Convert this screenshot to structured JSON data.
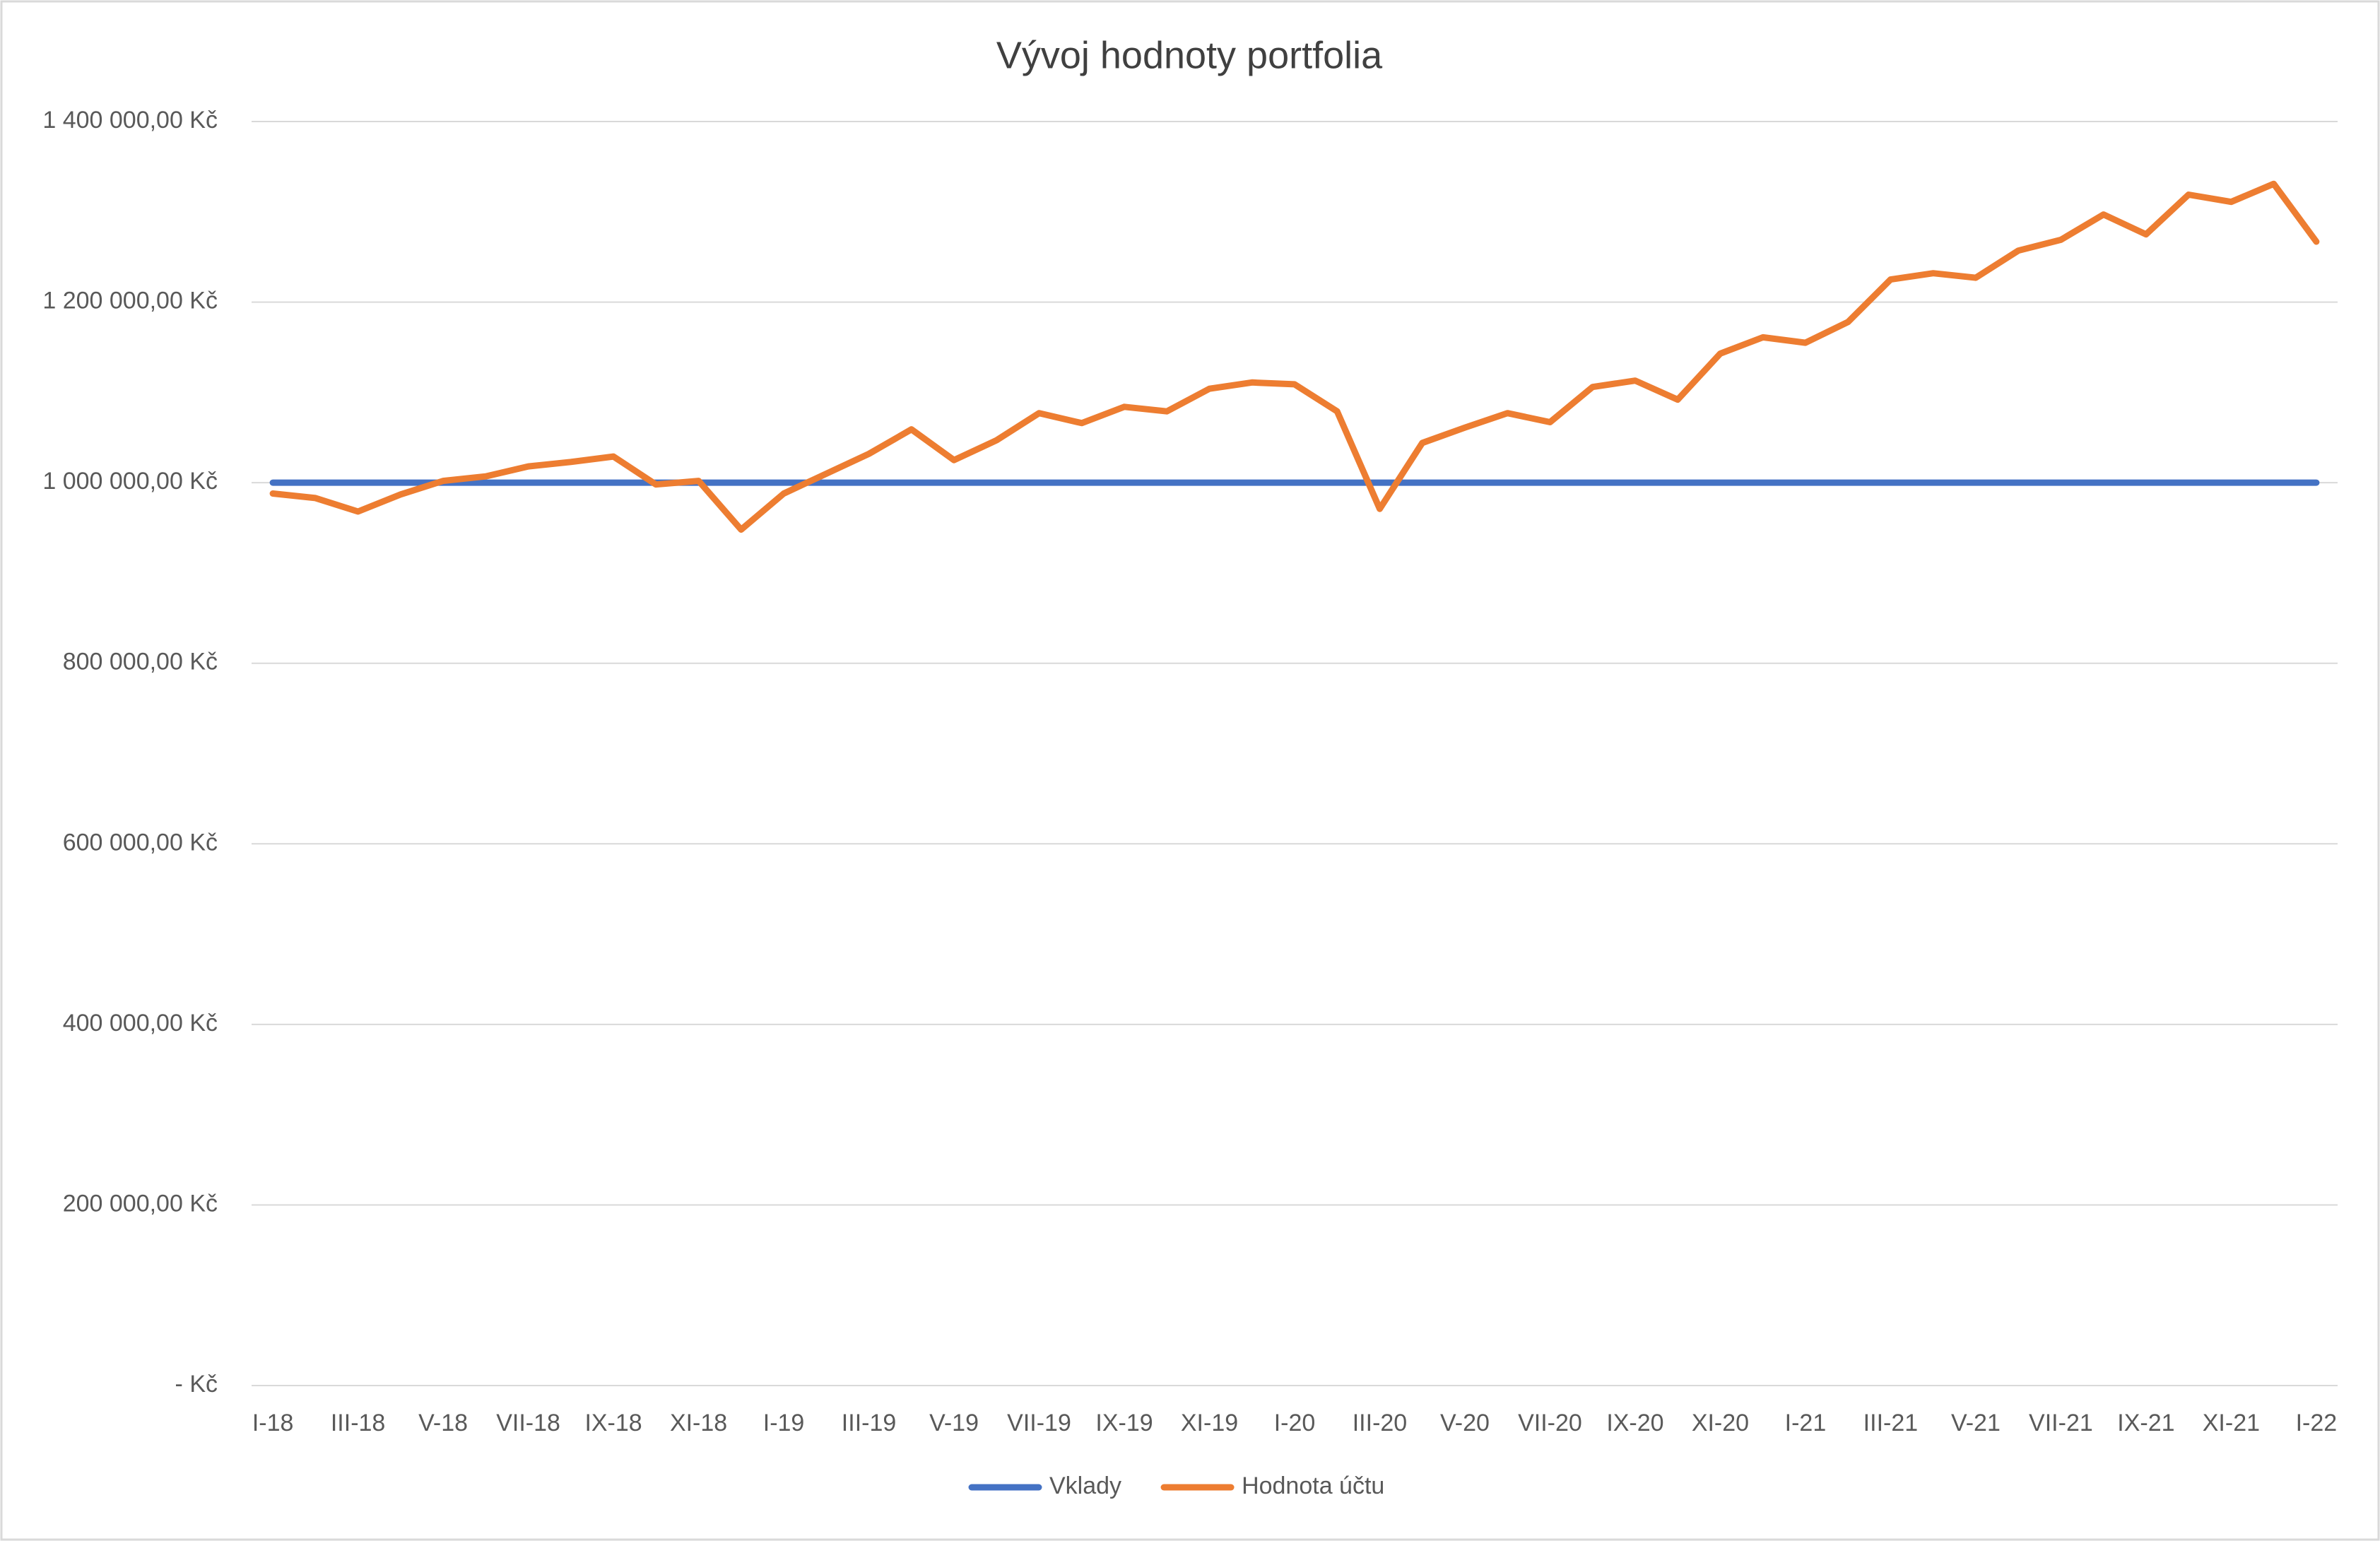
{
  "chart_data": {
    "type": "line",
    "title": "Vývoj hodnoty portfolia",
    "categories": [
      "I-18",
      null,
      "III-18",
      null,
      "V-18",
      null,
      "VII-18",
      null,
      "IX-18",
      null,
      "XI-18",
      null,
      "I-19",
      null,
      "III-19",
      null,
      "V-19",
      null,
      "VII-19",
      null,
      "IX-19",
      null,
      "XI-19",
      null,
      "I-20",
      null,
      "III-20",
      null,
      "V-20",
      null,
      "VII-20",
      null,
      "IX-20",
      null,
      "XI-20",
      null,
      "I-21",
      null,
      "III-21",
      null,
      "V-21",
      null,
      "VII-21",
      null,
      "IX-21",
      null,
      "XI-21",
      null,
      "I-22"
    ],
    "series": [
      {
        "name": "Vklady",
        "color": "#4472c4",
        "values": [
          1000000,
          1000000,
          1000000,
          1000000,
          1000000,
          1000000,
          1000000,
          1000000,
          1000000,
          1000000,
          1000000,
          1000000,
          1000000,
          1000000,
          1000000,
          1000000,
          1000000,
          1000000,
          1000000,
          1000000,
          1000000,
          1000000,
          1000000,
          1000000,
          1000000,
          1000000,
          1000000,
          1000000,
          1000000,
          1000000,
          1000000,
          1000000,
          1000000,
          1000000,
          1000000,
          1000000,
          1000000,
          1000000,
          1000000,
          1000000,
          1000000,
          1000000,
          1000000,
          1000000,
          1000000,
          1000000,
          1000000,
          1000000,
          1000000
        ]
      },
      {
        "name": "Hodnota účtu",
        "color": "#ed7d31",
        "values": [
          988000,
          983000,
          968000,
          987000,
          1002000,
          1007000,
          1018000,
          1023000,
          1029000,
          998000,
          1002000,
          948000,
          988000,
          1010000,
          1032000,
          1059000,
          1025000,
          1047000,
          1077000,
          1066000,
          1084000,
          1079000,
          1104000,
          1111000,
          1109000,
          1079000,
          971000,
          1044000,
          1061000,
          1077000,
          1067000,
          1106000,
          1113000,
          1092000,
          1143000,
          1161000,
          1155000,
          1178000,
          1225000,
          1232000,
          1227000,
          1257000,
          1269000,
          1297000,
          1275000,
          1319000,
          1311000,
          1331000,
          1267000
        ]
      }
    ],
    "ylim": [
      0,
      1400000
    ],
    "yticks": [
      {
        "value": 0,
        "label": "-   Kč"
      },
      {
        "value": 200000,
        "label": "200 000,00 Kč"
      },
      {
        "value": 400000,
        "label": "400 000,00 Kč"
      },
      {
        "value": 600000,
        "label": "600 000,00 Kč"
      },
      {
        "value": 800000,
        "label": "800 000,00 Kč"
      },
      {
        "value": 1000000,
        "label": "1 000 000,00 Kč"
      },
      {
        "value": 1200000,
        "label": "1 200 000,00 Kč"
      },
      {
        "value": 1400000,
        "label": "1 400 000,00 Kč"
      }
    ],
    "grid": true,
    "legend": "bottom"
  }
}
